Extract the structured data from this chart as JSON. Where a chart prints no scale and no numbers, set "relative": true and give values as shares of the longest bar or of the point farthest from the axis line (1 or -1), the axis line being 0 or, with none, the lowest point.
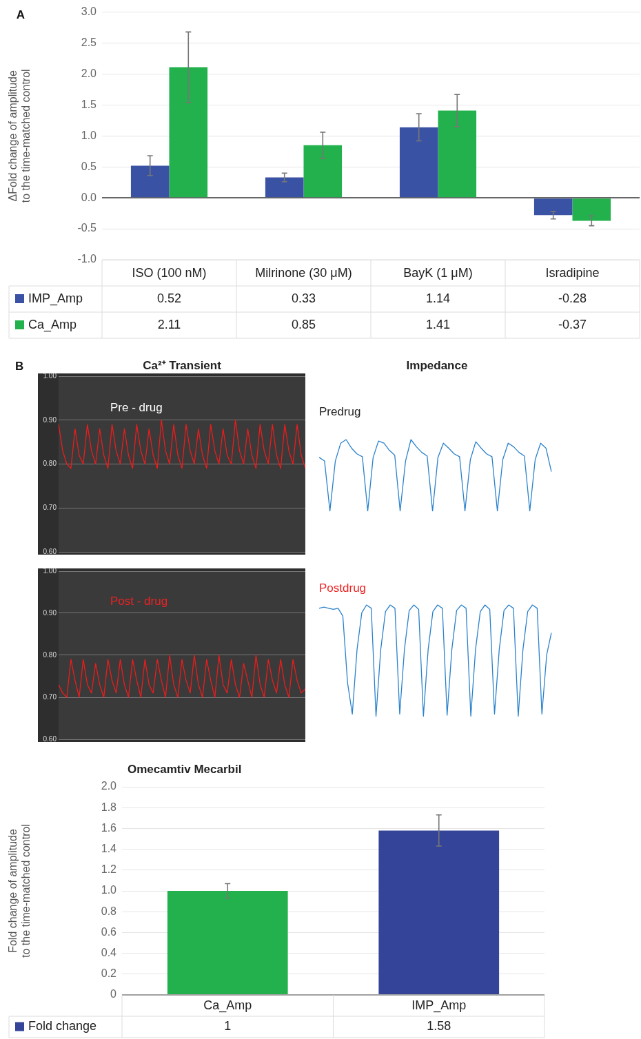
{
  "chart_data": [
    {
      "type": "bar",
      "ylabel": "ΔFold change of amplitude\nto the time-matched control",
      "categories": [
        "ISO (100 nM)",
        "Milrinone (30 μM)",
        "BayK (1 μM)",
        "Isradipine"
      ],
      "series": [
        {
          "name": "IMP_Amp",
          "color": "#3a52a4",
          "values": [
            0.52,
            0.33,
            1.14,
            -0.28
          ],
          "errors": [
            0.16,
            0.07,
            0.22,
            0.06
          ]
        },
        {
          "name": "Ca_Amp",
          "color": "#22b14c",
          "values": [
            2.11,
            0.85,
            1.41,
            -0.37
          ],
          "errors": [
            0.57,
            0.21,
            0.26,
            0.08
          ]
        }
      ],
      "ylim": [
        -1,
        3
      ],
      "yticks": [
        {
          "value": -1,
          "label": "-1.0"
        },
        -0.5,
        {
          "value": 0,
          "label": "0.0"
        },
        0.5,
        {
          "value": 1,
          "label": "1.0"
        },
        1.5,
        {
          "value": 2,
          "label": "2.0"
        },
        2.5,
        {
          "value": 3,
          "label": "3.0"
        }
      ],
      "grid": "y",
      "legend": "bottom left",
      "data_labels": true,
      "annotations": [
        "A"
      ]
    },
    {
      "type": "line",
      "title": "Ca²⁺ Transient",
      "categories": [
        null,
        null,
        null,
        null,
        null,
        null,
        null,
        null,
        null,
        null,
        null,
        null,
        null,
        null,
        null,
        null,
        null,
        null,
        null,
        null,
        null,
        null,
        null,
        null,
        null,
        null,
        null,
        null,
        null,
        null,
        null,
        null,
        null,
        null,
        null,
        null,
        null,
        null,
        null,
        null,
        null,
        null,
        null,
        null,
        null,
        null,
        null,
        null,
        null,
        null,
        null,
        null,
        null,
        null,
        null,
        null,
        null,
        null,
        null,
        null,
        null
      ],
      "series": [
        {
          "color": "#ee1c1c",
          "values": [
            0.89,
            0.83,
            0.8,
            0.79,
            0.88,
            0.82,
            0.8,
            0.89,
            0.83,
            0.8,
            0.88,
            0.82,
            0.79,
            0.89,
            0.83,
            0.8,
            0.88,
            0.82,
            0.79,
            0.89,
            0.83,
            0.8,
            0.88,
            0.82,
            0.79,
            0.9,
            0.83,
            0.8,
            0.89,
            0.82,
            0.79,
            0.89,
            0.83,
            0.8,
            0.88,
            0.82,
            0.79,
            0.89,
            0.83,
            0.8,
            0.88,
            0.82,
            0.8,
            0.9,
            0.83,
            0.8,
            0.88,
            0.82,
            0.79,
            0.89,
            0.83,
            0.8,
            0.89,
            0.82,
            0.79,
            0.89,
            0.83,
            0.8,
            0.89,
            0.82,
            0.79
          ]
        }
      ],
      "ylim": [
        0.6,
        1.0
      ],
      "yticks": [
        {
          "value": 0.6,
          "label": "0.60"
        },
        {
          "value": 0.7,
          "label": "0.70"
        },
        {
          "value": 0.8,
          "label": "0.80"
        },
        {
          "value": 0.9,
          "label": "0.90"
        },
        {
          "value": 1.0,
          "label": "1.00"
        }
      ],
      "grid": "y",
      "tick_labels": "y",
      "marker": "none",
      "annotations": [
        "B",
        "Pre - drug"
      ]
    },
    {
      "type": "line",
      "title": "Impedance",
      "relative": true,
      "categories": [
        null,
        null,
        null,
        null,
        null,
        null,
        null,
        null,
        null,
        null,
        null,
        null,
        null,
        null,
        null,
        null,
        null,
        null,
        null,
        null,
        null,
        null,
        null,
        null,
        null,
        null,
        null,
        null,
        null,
        null,
        null,
        null,
        null,
        null,
        null,
        null,
        null,
        null,
        null,
        null,
        null,
        null,
        null,
        null
      ],
      "series": [
        {
          "color": "#2a82cc",
          "values": [
            0.75,
            0.7,
            0.0,
            0.7,
            0.95,
            1.0,
            0.88,
            0.8,
            0.76,
            0.0,
            0.75,
            0.98,
            0.95,
            0.85,
            0.78,
            0.0,
            0.7,
            1.0,
            0.9,
            0.82,
            0.77,
            0.0,
            0.75,
            0.95,
            0.88,
            0.8,
            0.76,
            0.0,
            0.72,
            0.97,
            0.88,
            0.8,
            0.76,
            0.0,
            0.72,
            0.95,
            0.9,
            0.82,
            0.77,
            0.0,
            0.72,
            0.95,
            0.88,
            0.55
          ]
        }
      ],
      "marker": "none",
      "annotations": [
        "Predrug"
      ]
    },
    {
      "type": "line",
      "categories": [
        null,
        null,
        null,
        null,
        null,
        null,
        null,
        null,
        null,
        null,
        null,
        null,
        null,
        null,
        null,
        null,
        null,
        null,
        null,
        null,
        null,
        null,
        null,
        null,
        null,
        null,
        null,
        null,
        null,
        null,
        null,
        null,
        null,
        null,
        null,
        null,
        null,
        null,
        null,
        null,
        null,
        null,
        null,
        null,
        null,
        null,
        null,
        null,
        null,
        null,
        null,
        null,
        null,
        null,
        null,
        null,
        null,
        null,
        null,
        null,
        null
      ],
      "series": [
        {
          "color": "#ee1c1c",
          "values": [
            0.73,
            0.71,
            0.7,
            0.79,
            0.74,
            0.7,
            0.79,
            0.73,
            0.71,
            0.78,
            0.73,
            0.7,
            0.79,
            0.74,
            0.71,
            0.79,
            0.73,
            0.7,
            0.79,
            0.74,
            0.7,
            0.79,
            0.73,
            0.71,
            0.79,
            0.74,
            0.7,
            0.8,
            0.73,
            0.7,
            0.79,
            0.74,
            0.71,
            0.8,
            0.73,
            0.7,
            0.79,
            0.74,
            0.7,
            0.8,
            0.73,
            0.71,
            0.79,
            0.73,
            0.7,
            0.78,
            0.74,
            0.7,
            0.8,
            0.73,
            0.7,
            0.79,
            0.74,
            0.71,
            0.79,
            0.73,
            0.7,
            0.79,
            0.74,
            0.71,
            0.72
          ]
        }
      ],
      "ylim": [
        0.6,
        1.0
      ],
      "yticks": [
        {
          "value": 0.6,
          "label": "0.60"
        },
        {
          "value": 0.7,
          "label": "0.70"
        },
        {
          "value": 0.8,
          "label": "0.80"
        },
        {
          "value": 0.9,
          "label": "0.90"
        },
        {
          "value": 1.0,
          "label": "1.00"
        }
      ],
      "grid": "y",
      "tick_labels": "y",
      "marker": "none",
      "annotations": [
        "Post - drug"
      ]
    },
    {
      "type": "line",
      "relative": true,
      "categories": [
        null,
        null,
        null,
        null,
        null,
        null,
        null,
        null,
        null,
        null,
        null,
        null,
        null,
        null,
        null,
        null,
        null,
        null,
        null,
        null,
        null,
        null,
        null,
        null,
        null,
        null,
        null,
        null,
        null,
        null,
        null,
        null,
        null,
        null,
        null,
        null,
        null,
        null,
        null,
        null,
        null,
        null,
        null,
        null,
        null,
        null,
        null,
        null,
        null,
        null
      ],
      "series": [
        {
          "color": "#2a82cc",
          "values": [
            0.97,
            0.98,
            0.97,
            0.96,
            0.97,
            0.9,
            0.3,
            0.02,
            0.6,
            0.93,
            1.0,
            0.97,
            0.0,
            0.6,
            0.94,
            1.0,
            0.97,
            0.02,
            0.6,
            0.95,
            1.0,
            0.96,
            0.0,
            0.6,
            0.94,
            1.0,
            0.97,
            0.01,
            0.6,
            0.95,
            1.0,
            0.97,
            0.0,
            0.6,
            0.94,
            1.0,
            0.96,
            0.02,
            0.6,
            0.95,
            1.0,
            0.97,
            0.0,
            0.6,
            0.94,
            1.0,
            0.97,
            0.02,
            0.55,
            0.75
          ]
        }
      ],
      "marker": "none",
      "annotations": [
        "Postdrug"
      ]
    },
    {
      "type": "bar",
      "title": "Omecamtiv Mecarbil",
      "ylabel": "Fold change of amplitude\nto the time-matched control",
      "categories": [
        "Ca_Amp",
        "IMP_Amp"
      ],
      "series": [
        {
          "name": "Fold change",
          "color": "#334499",
          "colors": [
            "#22b14c",
            "#334499"
          ],
          "values": [
            1,
            1.58
          ],
          "errors": [
            0.07,
            0.15
          ]
        }
      ],
      "ylim": [
        0,
        2
      ],
      "yticks": [
        0,
        0.2,
        0.4,
        0.6,
        0.8,
        {
          "value": 1,
          "label": "1.0"
        },
        1.2,
        1.4,
        1.6,
        1.8,
        {
          "value": 2,
          "label": "2.0"
        }
      ],
      "grid": "y",
      "legend": "bottom left",
      "data_labels": true
    }
  ]
}
